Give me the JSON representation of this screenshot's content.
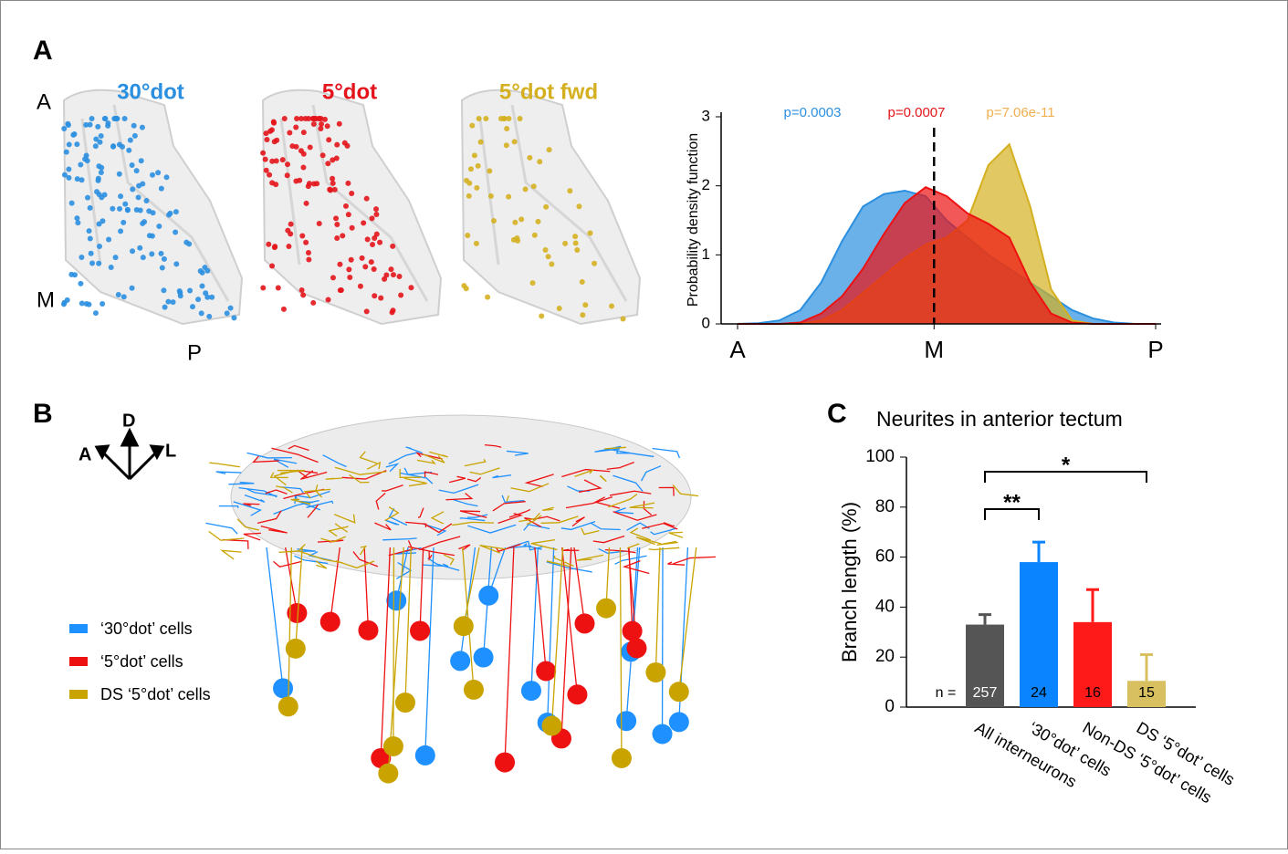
{
  "panel_labels": [
    "A",
    "B",
    "C"
  ],
  "panel_a": {
    "titles": [
      {
        "text": "30°dot",
        "color": "#2b8fe0"
      },
      {
        "text": "5°dot",
        "color": "#e3141b"
      },
      {
        "text": "5°dot fwd",
        "color": "#d4b020"
      }
    ],
    "orientation": [
      "A",
      "M",
      "P"
    ]
  },
  "panel_b": {
    "compass": [
      "D",
      "A",
      "L"
    ],
    "legend": [
      {
        "name": "‘30°dot’ cells",
        "color": "#1e90ff"
      },
      {
        "name": "‘5°dot’ cells",
        "color": "#ee1111"
      },
      {
        "name": "DS ‘5°dot’ cells",
        "color": "#c9a400"
      }
    ]
  },
  "chart_data": [
    {
      "type": "area",
      "ylabel": "Probability density function",
      "x": [
        0,
        0.05,
        0.1,
        0.15,
        0.2,
        0.25,
        0.3,
        0.35,
        0.4,
        0.45,
        0.5,
        0.55,
        0.6,
        0.65,
        0.7,
        0.75,
        0.8,
        0.85,
        0.9,
        0.95,
        1
      ],
      "xlim": [
        0,
        1
      ],
      "xticks": [
        {
          "value": 0,
          "label": "A"
        },
        {
          "value": 0.47,
          "label": "M"
        },
        {
          "value": 1,
          "label": "P"
        }
      ],
      "ylim": [
        0,
        3
      ],
      "yticks": [
        0,
        1,
        2,
        3
      ],
      "vline": 0.47,
      "annotations": [
        {
          "text": "p=0.0003",
          "color": "#2b8fe0"
        },
        {
          "text": "p=0.0007",
          "color": "#e3141b"
        },
        {
          "text": "p=7.06e-11",
          "color": "#f0b050"
        }
      ],
      "series": [
        {
          "color": "#2b8fe0",
          "values": [
            0,
            0.01,
            0.05,
            0.2,
            0.6,
            1.2,
            1.7,
            1.88,
            1.93,
            1.85,
            1.5,
            1.25,
            1.0,
            0.8,
            0.6,
            0.4,
            0.2,
            0.08,
            0.02,
            0,
            0
          ]
        },
        {
          "color": "#d4b020",
          "values": [
            0,
            0,
            0,
            0,
            0.05,
            0.2,
            0.45,
            0.7,
            0.95,
            1.15,
            1.25,
            1.5,
            2.3,
            2.6,
            1.7,
            0.5,
            0.05,
            0,
            0,
            0,
            0
          ]
        },
        {
          "color": "#ee1111",
          "values": [
            0,
            0,
            0,
            0.02,
            0.15,
            0.4,
            0.8,
            1.3,
            1.75,
            1.98,
            1.85,
            1.6,
            1.45,
            1.25,
            0.6,
            0.15,
            0.02,
            0,
            0,
            0,
            0
          ]
        }
      ]
    },
    {
      "type": "bar",
      "title": "Neurites in anterior tectum",
      "ylabel": "Branch length (%)",
      "categories": [
        "All interneurons",
        "‘30°dot’ cells",
        "Non-DS ‘5°dot’ cells",
        "DS ‘5°dot’ cells"
      ],
      "values": [
        33,
        58,
        34,
        10.5
      ],
      "errors": [
        4,
        8,
        13,
        10.5
      ],
      "colors": [
        "#555555",
        "#0a84ff",
        "#ff1a1a",
        "#d8c060"
      ],
      "n_prefix": "n =",
      "n": [
        257,
        24,
        16,
        15
      ],
      "ylim": [
        0,
        100
      ],
      "yticks": [
        0,
        20,
        40,
        60,
        80,
        100
      ],
      "significance": [
        {
          "from": 0,
          "to": 1,
          "label": "**"
        },
        {
          "from": 0,
          "to": 3,
          "label": "*"
        }
      ]
    }
  ]
}
